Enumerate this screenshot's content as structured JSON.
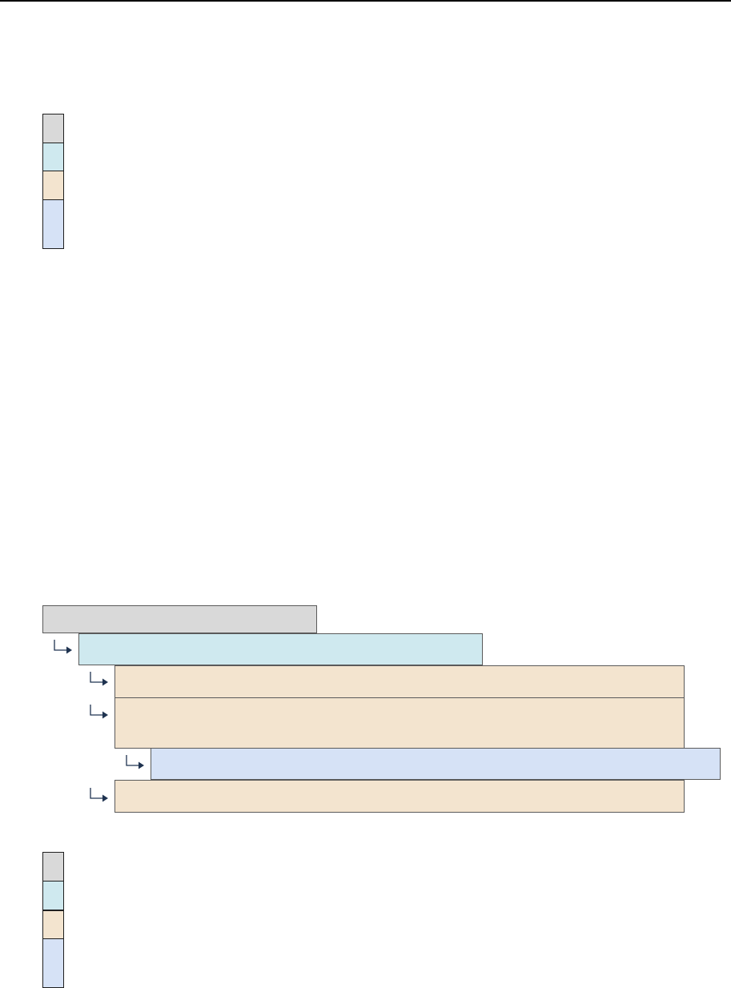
{
  "colors": {
    "level0": "#d9d9d9",
    "level1": "#cfe9ef",
    "level2": "#f3e4cf",
    "level3": "#d6e2f6",
    "arrow": "#1f3350"
  },
  "legend_top": {
    "swatches": [
      {
        "level": "level0"
      },
      {
        "level": "level1"
      },
      {
        "level": "level2"
      },
      {
        "level": "level3"
      }
    ]
  },
  "tree": {
    "nodes": [
      {
        "level": "level0",
        "depth": 0,
        "has_arrow": false
      },
      {
        "level": "level1",
        "depth": 1,
        "has_arrow": true
      },
      {
        "level": "level2",
        "depth": 2,
        "has_arrow": true
      },
      {
        "level": "level2",
        "depth": 2,
        "has_arrow": true
      },
      {
        "level": "level3",
        "depth": 3,
        "has_arrow": true
      },
      {
        "level": "level2",
        "depth": 2,
        "has_arrow": true
      }
    ]
  },
  "legend_bottom": {
    "swatches": [
      {
        "level": "level0"
      },
      {
        "level": "level1"
      },
      {
        "level": "level2"
      },
      {
        "level": "level3"
      }
    ]
  }
}
